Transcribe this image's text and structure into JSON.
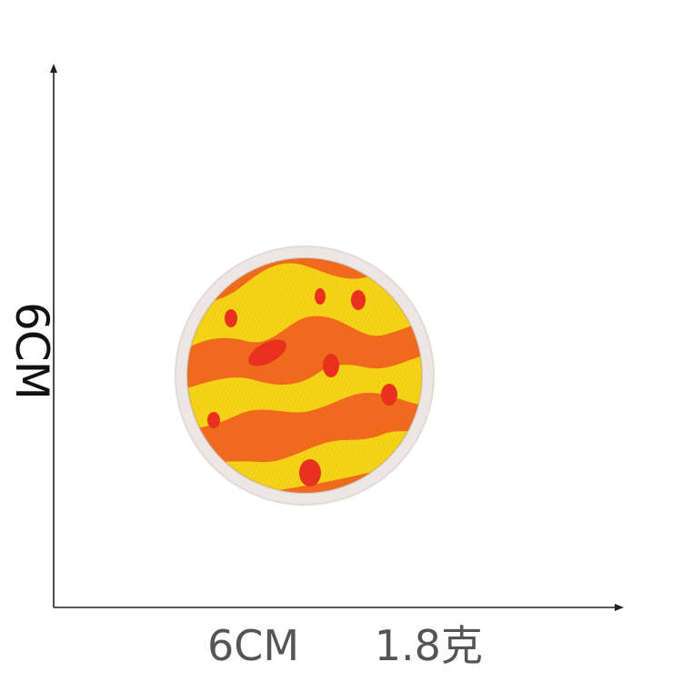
{
  "labels": {
    "width_label": "6CM",
    "height_label": "6CM",
    "weight_label": "1.8克"
  },
  "patch": {
    "subject": "planet-patch",
    "colors": {
      "border": "#ece6e4",
      "yellow": "#f5d417",
      "orange": "#f26a1d",
      "red_spot": "#e8321e"
    }
  },
  "axes": {
    "color": "#222222"
  }
}
